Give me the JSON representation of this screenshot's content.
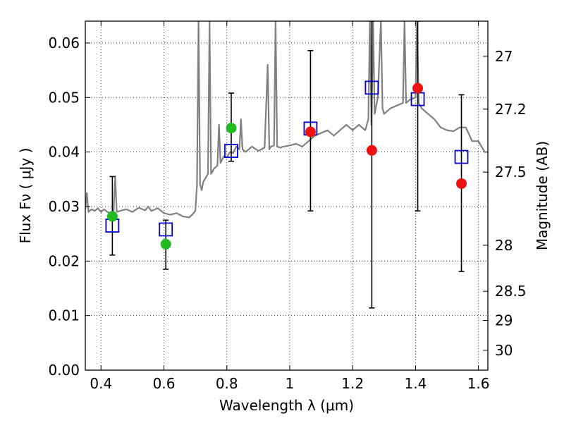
{
  "chart_data": {
    "type": "scatter",
    "xlabel": "Wavelength  λ (μm)",
    "ylabel": "Flux  Fν  ( μJy )",
    "y2label": "Magnitude (AB)",
    "xlim": [
      0.35,
      1.63
    ],
    "ylim": [
      0.0,
      0.064
    ],
    "grid": true,
    "x_ticks": [
      0.4,
      0.6,
      0.8,
      1.0,
      1.2,
      1.4,
      1.6
    ],
    "x_tick_labels": [
      "0.4",
      "0.6",
      "0.8",
      "1",
      "1.2",
      "1.4",
      "1.6"
    ],
    "y_ticks": [
      0.0,
      0.01,
      0.02,
      0.03,
      0.04,
      0.05,
      0.06
    ],
    "y_tick_labels": [
      "0.00",
      "0.01",
      "0.02",
      "0.03",
      "0.04",
      "0.05",
      "0.06"
    ],
    "y2_ticks": [
      {
        "mag": 27,
        "label": "27"
      },
      {
        "mag": 27.2,
        "label": "27.2"
      },
      {
        "mag": 27.5,
        "label": "27.5"
      },
      {
        "mag": 28,
        "label": "28"
      },
      {
        "mag": 28.5,
        "label": "28.5"
      },
      {
        "mag": 29,
        "label": "29"
      },
      {
        "mag": 30,
        "label": "30"
      }
    ],
    "series": [
      {
        "type": "line",
        "color": "#808080",
        "points": [
          [
            0.35,
            0.0295
          ],
          [
            0.355,
            0.0325
          ],
          [
            0.36,
            0.029
          ],
          [
            0.37,
            0.0295
          ],
          [
            0.38,
            0.0292
          ],
          [
            0.39,
            0.0297
          ],
          [
            0.4,
            0.029
          ],
          [
            0.41,
            0.0295
          ],
          [
            0.42,
            0.029
          ],
          [
            0.43,
            0.0288
          ],
          [
            0.44,
            0.029
          ],
          [
            0.445,
            0.0355
          ],
          [
            0.45,
            0.029
          ],
          [
            0.46,
            0.0292
          ],
          [
            0.48,
            0.0295
          ],
          [
            0.5,
            0.029
          ],
          [
            0.52,
            0.0298
          ],
          [
            0.54,
            0.0293
          ],
          [
            0.55,
            0.03
          ],
          [
            0.56,
            0.0292
          ],
          [
            0.58,
            0.0297
          ],
          [
            0.6,
            0.0288
          ],
          [
            0.62,
            0.0285
          ],
          [
            0.64,
            0.0288
          ],
          [
            0.66,
            0.0282
          ],
          [
            0.68,
            0.028
          ],
          [
            0.69,
            0.0285
          ],
          [
            0.7,
            0.0292
          ],
          [
            0.705,
            0.034
          ],
          [
            0.71,
            0.064
          ],
          [
            0.715,
            0.034
          ],
          [
            0.72,
            0.033
          ],
          [
            0.725,
            0.0345
          ],
          [
            0.73,
            0.035
          ],
          [
            0.74,
            0.036
          ],
          [
            0.745,
            0.064
          ],
          [
            0.75,
            0.036
          ],
          [
            0.76,
            0.037
          ],
          [
            0.77,
            0.0375
          ],
          [
            0.775,
            0.045
          ],
          [
            0.78,
            0.038
          ],
          [
            0.79,
            0.0392
          ],
          [
            0.8,
            0.039
          ],
          [
            0.81,
            0.04
          ],
          [
            0.82,
            0.0398
          ],
          [
            0.83,
            0.041
          ],
          [
            0.84,
            0.0405
          ],
          [
            0.845,
            0.046
          ],
          [
            0.85,
            0.0405
          ],
          [
            0.86,
            0.04
          ],
          [
            0.88,
            0.041
          ],
          [
            0.9,
            0.0402
          ],
          [
            0.92,
            0.0408
          ],
          [
            0.93,
            0.056
          ],
          [
            0.935,
            0.0405
          ],
          [
            0.94,
            0.041
          ],
          [
            0.95,
            0.0412
          ],
          [
            0.955,
            0.064
          ],
          [
            0.96,
            0.041
          ],
          [
            0.97,
            0.0408
          ],
          [
            0.98,
            0.041
          ],
          [
            1.0,
            0.0412
          ],
          [
            1.02,
            0.0415
          ],
          [
            1.04,
            0.041
          ],
          [
            1.06,
            0.042
          ],
          [
            1.08,
            0.043
          ],
          [
            1.1,
            0.0435
          ],
          [
            1.12,
            0.044
          ],
          [
            1.14,
            0.043
          ],
          [
            1.16,
            0.044
          ],
          [
            1.18,
            0.045
          ],
          [
            1.2,
            0.044
          ],
          [
            1.22,
            0.045
          ],
          [
            1.24,
            0.044
          ],
          [
            1.25,
            0.046
          ],
          [
            1.255,
            0.064
          ],
          [
            1.26,
            0.045
          ],
          [
            1.265,
            0.064
          ],
          [
            1.27,
            0.047
          ],
          [
            1.28,
            0.05
          ],
          [
            1.29,
            0.064
          ],
          [
            1.295,
            0.048
          ],
          [
            1.3,
            0.047
          ],
          [
            1.32,
            0.048
          ],
          [
            1.34,
            0.0485
          ],
          [
            1.36,
            0.049
          ],
          [
            1.365,
            0.064
          ],
          [
            1.37,
            0.049
          ],
          [
            1.38,
            0.0495
          ],
          [
            1.4,
            0.05
          ],
          [
            1.405,
            0.064
          ],
          [
            1.41,
            0.049
          ],
          [
            1.42,
            0.048
          ],
          [
            1.44,
            0.047
          ],
          [
            1.46,
            0.046
          ],
          [
            1.48,
            0.0445
          ],
          [
            1.5,
            0.044
          ],
          [
            1.52,
            0.0438
          ],
          [
            1.54,
            0.0445
          ],
          [
            1.56,
            0.0445
          ],
          [
            1.58,
            0.042
          ],
          [
            1.6,
            0.042
          ],
          [
            1.62,
            0.04
          ],
          [
            1.63,
            0.04
          ]
        ]
      },
      {
        "type": "errorbar",
        "color": "#000000",
        "points": [
          {
            "x": 0.436,
            "low": 0.0211,
            "high": 0.0355
          },
          {
            "x": 0.606,
            "low": 0.0185,
            "high": 0.0275
          },
          {
            "x": 0.814,
            "low": 0.0383,
            "high": 0.0508
          },
          {
            "x": 1.066,
            "low": 0.0292,
            "high": 0.0586
          },
          {
            "x": 1.261,
            "low": 0.0114,
            "high": 0.064
          },
          {
            "x": 1.407,
            "low": 0.0292,
            "high": 0.064
          },
          {
            "x": 1.546,
            "low": 0.0181,
            "high": 0.0505
          }
        ]
      },
      {
        "type": "scatter",
        "marker": "square-open",
        "color": "#0000cc",
        "points": [
          [
            0.436,
            0.0265
          ],
          [
            0.606,
            0.0258
          ],
          [
            0.814,
            0.0402
          ],
          [
            1.066,
            0.0443
          ],
          [
            1.261,
            0.0518
          ],
          [
            1.407,
            0.0497
          ],
          [
            1.546,
            0.0391
          ]
        ]
      },
      {
        "type": "scatter",
        "marker": "circle",
        "color": "#22bb22",
        "points": [
          [
            0.436,
            0.0282
          ],
          [
            0.606,
            0.0231
          ],
          [
            0.814,
            0.0444
          ]
        ]
      },
      {
        "type": "scatter",
        "marker": "circle",
        "color": "#ee1111",
        "points": [
          [
            1.066,
            0.0437
          ],
          [
            1.261,
            0.0403
          ],
          [
            1.407,
            0.0517
          ],
          [
            1.546,
            0.0342
          ]
        ]
      }
    ]
  }
}
